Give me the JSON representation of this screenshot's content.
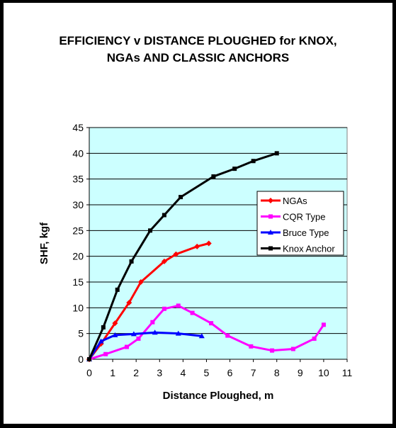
{
  "chart_data": {
    "type": "line",
    "title_lines": [
      "EFFICIENCY v DISTANCE PLOUGHED for KNOX,",
      "NGAs AND CLASSIC ANCHORS"
    ],
    "xlabel": "Distance Ploughed, m",
    "ylabel": "SHF, kgf",
    "xlim": [
      0,
      11
    ],
    "ylim": [
      0,
      45
    ],
    "x_ticks": [
      "0",
      "1",
      "2",
      "3",
      "4",
      "5",
      "6",
      "7",
      "8",
      "9",
      "10",
      "11"
    ],
    "y_ticks": [
      "0",
      "5",
      "10",
      "15",
      "20",
      "25",
      "30",
      "35",
      "40",
      "45"
    ],
    "grid": "horizontal",
    "plot_background": "#ccffff",
    "legend_position": "right",
    "series": [
      {
        "name": "NGAs",
        "color": "#ff0000",
        "marker": "diamond",
        "x": [
          0,
          0.5,
          1.1,
          1.7,
          2.2,
          3.2,
          3.7,
          4.6,
          5.1
        ],
        "y": [
          0,
          3,
          7,
          11,
          15,
          19,
          20.4,
          21.9,
          22.5
        ]
      },
      {
        "name": "CQR Type",
        "color": "#ff00ff",
        "marker": "square",
        "x": [
          0,
          0.7,
          1.6,
          2.1,
          2.7,
          3.2,
          3.8,
          4.4,
          5.2,
          5.9,
          6.9,
          7.8,
          8.7,
          9.6,
          10
        ],
        "y": [
          0,
          1,
          2.4,
          4,
          7.2,
          9.8,
          10.4,
          9,
          7,
          4.6,
          2.5,
          1.7,
          2,
          4,
          6.7
        ]
      },
      {
        "name": "Bruce Type",
        "color": "#0000ff",
        "marker": "triangle",
        "x": [
          0,
          0.5,
          1.1,
          1.9,
          2.8,
          3.8,
          4.8
        ],
        "y": [
          0,
          3.5,
          4.7,
          4.9,
          5.2,
          5,
          4.5
        ]
      },
      {
        "name": "Knox Anchor",
        "color": "#000000",
        "marker": "square",
        "x": [
          0,
          0.6,
          1.2,
          1.8,
          2.6,
          3.2,
          3.9,
          5.3,
          6.2,
          7,
          8
        ],
        "y": [
          0,
          6.2,
          13.5,
          19,
          25,
          28,
          31.5,
          35.5,
          37,
          38.5,
          40
        ]
      }
    ]
  }
}
